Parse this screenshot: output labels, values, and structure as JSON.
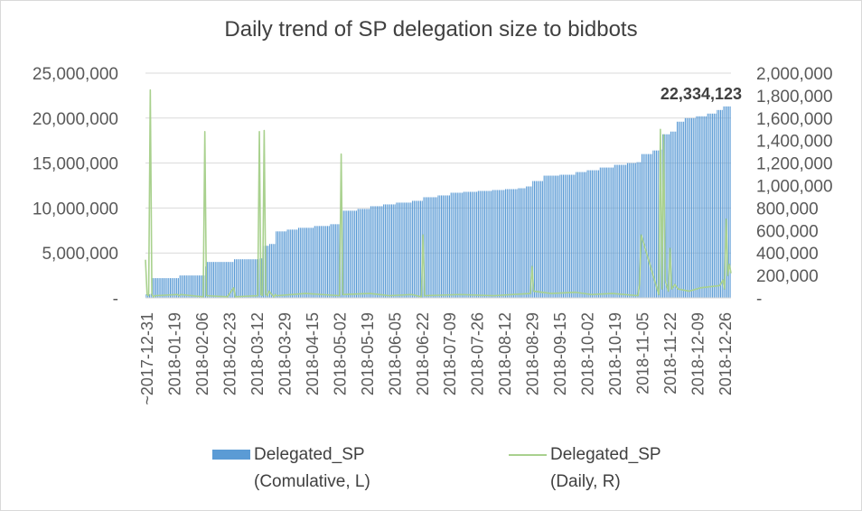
{
  "chart_data": {
    "type": "bar",
    "title": "Daily trend of SP delegation size to bidbots",
    "annotation": "22,334,123",
    "x_tick_labels": [
      "~2017-12-31",
      "2018-01-19",
      "2018-02-06",
      "2018-02-23",
      "2018-03-12",
      "2018-03-29",
      "2018-04-15",
      "2018-05-02",
      "2018-05-19",
      "2018-06-05",
      "2018-06-22",
      "2018-07-09",
      "2018-07-26",
      "2018-08-12",
      "2018-08-29",
      "2018-09-15",
      "2018-10-02",
      "2018-10-19",
      "2018-11-05",
      "2018-11-22",
      "2018-12-09",
      "2018-12-26"
    ],
    "y_left": {
      "ticks": [
        0,
        5000000,
        10000000,
        15000000,
        20000000,
        25000000
      ],
      "tick_labels": [
        "-",
        "5,000,000",
        "10,000,000",
        "15,000,000",
        "20,000,000",
        "25,000,000"
      ],
      "ylim": [
        0,
        25000000
      ]
    },
    "y_right": {
      "ticks": [
        0,
        200000,
        400000,
        600000,
        800000,
        1000000,
        1200000,
        1400000,
        1600000,
        1800000,
        2000000
      ],
      "tick_labels": [
        "-",
        "200,000",
        "400,000",
        "600,000",
        "800,000",
        "1,000,000",
        "1,200,000",
        "1,400,000",
        "1,600,000",
        "1,800,000",
        "2,000,000"
      ],
      "ylim": [
        0,
        2000000
      ]
    },
    "series": [
      {
        "name": "Delegated_SP",
        "legend_line1": "Delegated_SP",
        "legend_line2": "(Comulative, L)",
        "type": "bar",
        "axis": "left",
        "color": "#5b9bd5",
        "x": [
          "2017-12-31",
          "2018-01-03",
          "2018-01-04",
          "2018-01-20",
          "2018-01-21",
          "2018-02-06",
          "2018-02-07",
          "2018-02-24",
          "2018-03-12",
          "2018-03-14",
          "2018-03-18",
          "2018-03-22",
          "2018-03-29",
          "2018-04-05",
          "2018-04-15",
          "2018-04-25",
          "2018-05-01",
          "2018-05-02",
          "2018-05-12",
          "2018-05-20",
          "2018-05-28",
          "2018-06-05",
          "2018-06-15",
          "2018-06-22",
          "2018-07-01",
          "2018-07-09",
          "2018-07-17",
          "2018-07-26",
          "2018-08-04",
          "2018-08-12",
          "2018-08-20",
          "2018-08-25",
          "2018-08-29",
          "2018-09-05",
          "2018-09-15",
          "2018-09-25",
          "2018-10-02",
          "2018-10-10",
          "2018-10-19",
          "2018-10-27",
          "2018-11-02",
          "2018-11-05",
          "2018-11-12",
          "2018-11-17",
          "2018-11-18",
          "2018-11-23",
          "2018-11-27",
          "2018-12-02",
          "2018-12-09",
          "2018-12-16",
          "2018-12-22",
          "2018-12-26",
          "2018-12-31"
        ],
        "values": [
          400000,
          450000,
          2200000,
          2200000,
          2500000,
          3500000,
          4000000,
          4300000,
          4400000,
          5800000,
          6000000,
          7400000,
          7600000,
          7800000,
          8000000,
          8200000,
          8300000,
          9700000,
          9900000,
          10200000,
          10400000,
          10600000,
          10800000,
          11200000,
          11400000,
          11700000,
          11800000,
          11900000,
          12000000,
          12100000,
          12200000,
          12400000,
          13000000,
          13600000,
          13700000,
          14000000,
          14200000,
          14500000,
          14800000,
          15000000,
          15100000,
          16000000,
          16400000,
          16500000,
          18200000,
          18500000,
          19600000,
          20000000,
          20200000,
          20500000,
          20900000,
          21300000,
          22334123
        ]
      },
      {
        "name": "Delegated_SP",
        "legend_line1": "Delegated_SP",
        "legend_line2": "(Daily, R)",
        "type": "line",
        "axis": "right",
        "color": "#a9d18e",
        "x": [
          "2017-12-31",
          "2018-01-01",
          "2018-01-02",
          "2018-01-03",
          "2018-01-04",
          "2018-01-05",
          "2018-01-06",
          "2018-01-20",
          "2018-01-21",
          "2018-01-22",
          "2018-02-05",
          "2018-02-06",
          "2018-02-07",
          "2018-02-20",
          "2018-02-24",
          "2018-02-25",
          "2018-03-11",
          "2018-03-12",
          "2018-03-13",
          "2018-03-14",
          "2018-03-15",
          "2018-03-16",
          "2018-03-17",
          "2018-03-18",
          "2018-03-21",
          "2018-03-22",
          "2018-03-23",
          "2018-04-10",
          "2018-04-20",
          "2018-05-01",
          "2018-05-02",
          "2018-05-03",
          "2018-05-20",
          "2018-06-01",
          "2018-06-15",
          "2018-06-21",
          "2018-06-22",
          "2018-06-23",
          "2018-07-15",
          "2018-08-05",
          "2018-08-28",
          "2018-08-29",
          "2018-08-30",
          "2018-09-10",
          "2018-09-25",
          "2018-10-05",
          "2018-10-18",
          "2018-11-03",
          "2018-11-04",
          "2018-11-05",
          "2018-11-16",
          "2018-11-17",
          "2018-11-18",
          "2018-11-19",
          "2018-11-20",
          "2018-11-22",
          "2018-11-23",
          "2018-11-24",
          "2018-11-26",
          "2018-11-27",
          "2018-11-28",
          "2018-12-05",
          "2018-12-12",
          "2018-12-18",
          "2018-12-24",
          "2018-12-26",
          "2018-12-27",
          "2018-12-28",
          "2018-12-29",
          "2018-12-30",
          "2018-12-31"
        ],
        "values": [
          340000,
          30000,
          20000,
          1850000,
          30000,
          10000,
          20000,
          30000,
          20000,
          30000,
          10000,
          1480000,
          20000,
          10000,
          90000,
          10000,
          20000,
          1480000,
          30000,
          20000,
          1490000,
          30000,
          20000,
          60000,
          10000,
          30000,
          20000,
          40000,
          30000,
          20000,
          1280000,
          30000,
          40000,
          20000,
          30000,
          10000,
          560000,
          20000,
          30000,
          20000,
          40000,
          280000,
          60000,
          40000,
          50000,
          30000,
          40000,
          20000,
          120000,
          560000,
          30000,
          1500000,
          80000,
          1450000,
          150000,
          60000,
          440000,
          80000,
          120000,
          100000,
          80000,
          60000,
          90000,
          100000,
          110000,
          160000,
          80000,
          700000,
          200000,
          300000,
          220000
        ]
      }
    ]
  }
}
